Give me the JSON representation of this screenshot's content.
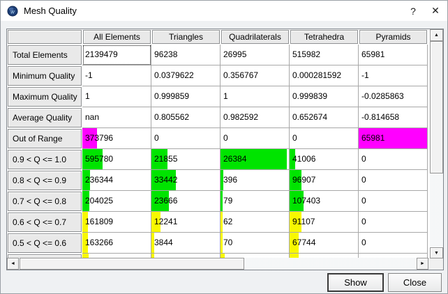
{
  "window": {
    "title": "Mesh Quality",
    "help_icon": "?",
    "close_icon": "✕"
  },
  "colors": {
    "green": "#00e400",
    "yellow": "#f8f800",
    "magenta": "#ff00ff"
  },
  "icons": {
    "up": "▲",
    "down": "▼",
    "left": "◄",
    "right": "►"
  },
  "table": {
    "columns": [
      "All Elements",
      "Triangles",
      "Quadrilaterals",
      "Tetrahedra",
      "Pyramids"
    ],
    "rows": [
      {
        "label": "Total Elements",
        "values": [
          "2139479",
          "96238",
          "26995",
          "515982",
          "65981"
        ],
        "bar_color": null,
        "bar_pct": [
          0,
          0,
          0,
          0,
          0
        ],
        "focused_col": 0
      },
      {
        "label": "Minimum Quality",
        "values": [
          "-1",
          "0.0379622",
          "0.356767",
          "0.000281592",
          "-1"
        ],
        "bar_color": null,
        "bar_pct": [
          0,
          0,
          0,
          0,
          0
        ]
      },
      {
        "label": "Maximum Quality",
        "values": [
          "1",
          "0.999859",
          "1",
          "0.999839",
          "-0.0285863"
        ],
        "bar_color": null,
        "bar_pct": [
          0,
          0,
          0,
          0,
          0
        ]
      },
      {
        "label": "Average Quality",
        "values": [
          "nan",
          "0.805562",
          "0.982592",
          "0.652674",
          "-0.814658"
        ],
        "bar_color": null,
        "bar_pct": [
          0,
          0,
          0,
          0,
          0
        ]
      },
      {
        "label": "Out of Range",
        "values": [
          "373796",
          "0",
          "0",
          "0",
          "65981"
        ],
        "bar_color": "magenta",
        "bar_pct": [
          21,
          0,
          0,
          0,
          100
        ]
      },
      {
        "label": "0.9 < Q <= 1.0",
        "values": [
          "595780",
          "21855",
          "26384",
          "41006",
          "0"
        ],
        "bar_color": "green",
        "bar_pct": [
          30,
          23,
          97,
          8,
          0
        ]
      },
      {
        "label": "0.8 < Q <= 0.9",
        "values": [
          "236344",
          "33442",
          "396",
          "96907",
          "0"
        ],
        "bar_color": "green",
        "bar_pct": [
          11,
          36,
          4,
          17,
          0
        ]
      },
      {
        "label": "0.7 < Q <= 0.8",
        "values": [
          "204025",
          "23666",
          "79",
          "107403",
          "0"
        ],
        "bar_color": "green",
        "bar_pct": [
          10,
          26,
          3,
          20,
          0
        ]
      },
      {
        "label": "0.6 < Q <= 0.7",
        "values": [
          "161809",
          "12241",
          "62",
          "91107",
          "0"
        ],
        "bar_color": "yellow",
        "bar_pct": [
          8,
          13,
          3,
          17,
          0
        ]
      },
      {
        "label": "0.5 < Q <= 0.6",
        "values": [
          "163266",
          "3844",
          "70",
          "67744",
          "0"
        ],
        "bar_color": "yellow",
        "bar_pct": [
          8,
          4,
          3,
          13,
          0
        ]
      },
      {
        "label": "",
        "values": [
          "",
          "",
          "",
          "",
          ""
        ],
        "bar_color": "yellow",
        "bar_pct": [
          9,
          4,
          6,
          13,
          0
        ],
        "partial": true
      }
    ]
  },
  "buttons": {
    "show": "Show",
    "close": "Close"
  }
}
